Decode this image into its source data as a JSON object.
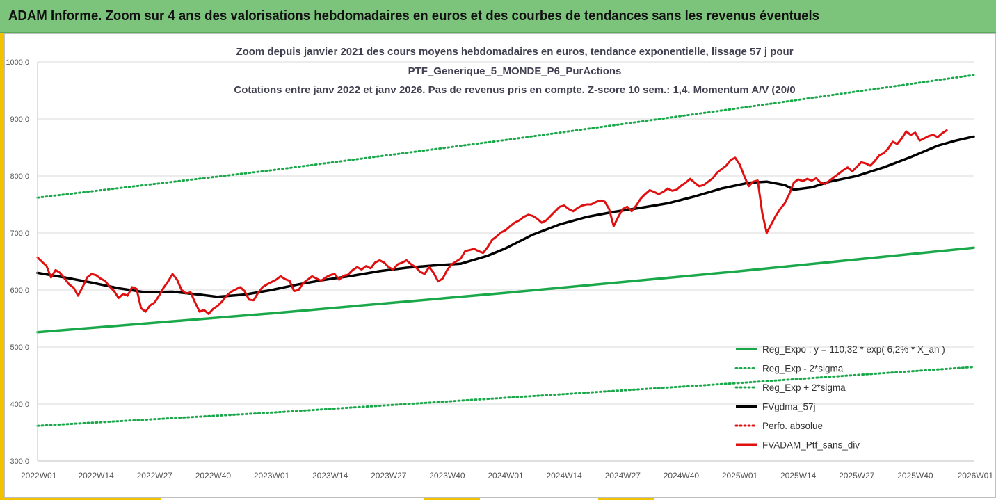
{
  "banner": {
    "title": "ADAM Informe. Zoom sur 4 ans des valorisations hebdomadaires en euros et des courbes de tendances sans les revenus éventuels"
  },
  "colors": {
    "banner_bg": "#7cc47b",
    "accent_yellow": "#f2c200",
    "regression": "#1aa84a",
    "dotted_bands": "#1aa84a",
    "moving_average": "#000000",
    "perf_absolue": "#e01010",
    "portfolio": "#e01010"
  },
  "chart_data": {
    "type": "line",
    "title_lines": [
      "Zoom depuis janvier 2021 des cours moyens hebdomadaires  en euros, tendance exponentielle, lissage 57 j pour",
      "PTF_Generique_5_MONDE_P6_PurActions",
      "Cotations entre janv 2022 et janv 2026. Pas de revenus pris en compte. Z-score 10 sem.: 1,4. Momentum A/V (20/0"
    ],
    "x_unit": "weeks since 2022W01",
    "x_range": [
      0,
      208
    ],
    "x_ticks": [
      {
        "x": 0,
        "label": "2022W01"
      },
      {
        "x": 13,
        "label": "2022W14"
      },
      {
        "x": 26,
        "label": "2022W27"
      },
      {
        "x": 39,
        "label": "2022W40"
      },
      {
        "x": 52,
        "label": "2023W01"
      },
      {
        "x": 65,
        "label": "2023W14"
      },
      {
        "x": 78,
        "label": "2023W27"
      },
      {
        "x": 91,
        "label": "2023W40"
      },
      {
        "x": 104,
        "label": "2024W01"
      },
      {
        "x": 117,
        "label": "2024W14"
      },
      {
        "x": 130,
        "label": "2024W27"
      },
      {
        "x": 143,
        "label": "2024W40"
      },
      {
        "x": 156,
        "label": "2025W01"
      },
      {
        "x": 169,
        "label": "2025W14"
      },
      {
        "x": 182,
        "label": "2025W27"
      },
      {
        "x": 195,
        "label": "2025W40"
      },
      {
        "x": 208,
        "label": "2026W01"
      }
    ],
    "y_range": [
      300,
      1000
    ],
    "y_ticks": [
      {
        "value": 300,
        "label": "300,0"
      },
      {
        "value": 400,
        "label": "400,0"
      },
      {
        "value": 500,
        "label": "500,0"
      },
      {
        "value": 600,
        "label": "600,0"
      },
      {
        "value": 700,
        "label": "700,0"
      },
      {
        "value": 800,
        "label": "800,0"
      },
      {
        "value": 900,
        "label": "900,0"
      },
      {
        "value": 1000,
        "label": "1000,0"
      }
    ],
    "legend_position": "bottom-right",
    "series": [
      {
        "name": "Reg_Expo : y = 110,32 * exp( 6,2% *  X_an )",
        "style": "solid-thick",
        "color": "#1aa84a",
        "points": [
          [
            0,
            526
          ],
          [
            52,
            559
          ],
          [
            104,
            595
          ],
          [
            156,
            633
          ],
          [
            208,
            674
          ]
        ]
      },
      {
        "name": "Reg_Exp - 2*sigma",
        "style": "dotted",
        "color": "#1aa84a",
        "points": [
          [
            0,
            362
          ],
          [
            52,
            385
          ],
          [
            104,
            411
          ],
          [
            156,
            437
          ],
          [
            208,
            465
          ]
        ]
      },
      {
        "name": "Reg_Exp + 2*sigma",
        "style": "dotted",
        "color": "#1aa84a",
        "points": [
          [
            0,
            762
          ],
          [
            52,
            810
          ],
          [
            104,
            863
          ],
          [
            156,
            919
          ],
          [
            208,
            977
          ]
        ]
      },
      {
        "name": "FVgdma_57j",
        "style": "solid-thick",
        "color": "#000000",
        "points": [
          [
            0,
            630
          ],
          [
            6,
            622
          ],
          [
            12,
            613
          ],
          [
            18,
            603
          ],
          [
            24,
            596
          ],
          [
            30,
            597
          ],
          [
            36,
            592
          ],
          [
            40,
            588
          ],
          [
            46,
            592
          ],
          [
            52,
            600
          ],
          [
            58,
            610
          ],
          [
            64,
            618
          ],
          [
            70,
            625
          ],
          [
            76,
            633
          ],
          [
            82,
            639
          ],
          [
            88,
            643
          ],
          [
            94,
            646
          ],
          [
            100,
            660
          ],
          [
            104,
            673
          ],
          [
            110,
            697
          ],
          [
            116,
            715
          ],
          [
            122,
            728
          ],
          [
            128,
            737
          ],
          [
            134,
            744
          ],
          [
            140,
            752
          ],
          [
            146,
            764
          ],
          [
            152,
            778
          ],
          [
            158,
            788
          ],
          [
            162,
            790
          ],
          [
            166,
            784
          ],
          [
            168,
            776
          ],
          [
            172,
            780
          ],
          [
            176,
            790
          ],
          [
            182,
            800
          ],
          [
            188,
            815
          ],
          [
            194,
            833
          ],
          [
            200,
            853
          ],
          [
            204,
            862
          ],
          [
            208,
            869
          ]
        ]
      },
      {
        "name": "Perfo. absolue",
        "style": "dotted",
        "color": "#e01010",
        "points": []
      },
      {
        "name": "FVADAM_Ptf_sans_div",
        "style": "solid-thick",
        "color": "#e01010",
        "points": [
          [
            0,
            657
          ],
          [
            2,
            642
          ],
          [
            3,
            622
          ],
          [
            4,
            635
          ],
          [
            5,
            630
          ],
          [
            6,
            620
          ],
          [
            7,
            610
          ],
          [
            8,
            604
          ],
          [
            9,
            590
          ],
          [
            10,
            605
          ],
          [
            11,
            622
          ],
          [
            12,
            628
          ],
          [
            13,
            626
          ],
          [
            14,
            620
          ],
          [
            15,
            616
          ],
          [
            16,
            606
          ],
          [
            17,
            598
          ],
          [
            18,
            586
          ],
          [
            19,
            593
          ],
          [
            20,
            590
          ],
          [
            21,
            605
          ],
          [
            22,
            602
          ],
          [
            23,
            568
          ],
          [
            24,
            562
          ],
          [
            25,
            573
          ],
          [
            26,
            578
          ],
          [
            27,
            590
          ],
          [
            28,
            604
          ],
          [
            29,
            615
          ],
          [
            30,
            628
          ],
          [
            31,
            618
          ],
          [
            32,
            600
          ],
          [
            33,
            594
          ],
          [
            34,
            596
          ],
          [
            35,
            578
          ],
          [
            36,
            562
          ],
          [
            37,
            565
          ],
          [
            38,
            558
          ],
          [
            39,
            567
          ],
          [
            40,
            572
          ],
          [
            41,
            580
          ],
          [
            42,
            590
          ],
          [
            43,
            597
          ],
          [
            44,
            601
          ],
          [
            45,
            605
          ],
          [
            46,
            598
          ],
          [
            47,
            583
          ],
          [
            48,
            582
          ],
          [
            49,
            595
          ],
          [
            50,
            605
          ],
          [
            51,
            610
          ],
          [
            52,
            614
          ],
          [
            53,
            618
          ],
          [
            54,
            624
          ],
          [
            55,
            619
          ],
          [
            56,
            616
          ],
          [
            57,
            598
          ],
          [
            58,
            600
          ],
          [
            59,
            612
          ],
          [
            60,
            618
          ],
          [
            61,
            624
          ],
          [
            62,
            620
          ],
          [
            63,
            616
          ],
          [
            64,
            622
          ],
          [
            65,
            626
          ],
          [
            66,
            628
          ],
          [
            67,
            618
          ],
          [
            68,
            625
          ],
          [
            69,
            627
          ],
          [
            70,
            635
          ],
          [
            71,
            640
          ],
          [
            72,
            636
          ],
          [
            73,
            642
          ],
          [
            74,
            638
          ],
          [
            75,
            648
          ],
          [
            76,
            652
          ],
          [
            77,
            648
          ],
          [
            78,
            640
          ],
          [
            79,
            636
          ],
          [
            80,
            645
          ],
          [
            81,
            648
          ],
          [
            82,
            652
          ],
          [
            83,
            645
          ],
          [
            84,
            640
          ],
          [
            85,
            632
          ],
          [
            86,
            628
          ],
          [
            87,
            640
          ],
          [
            88,
            630
          ],
          [
            89,
            615
          ],
          [
            90,
            620
          ],
          [
            91,
            635
          ],
          [
            92,
            645
          ],
          [
            93,
            650
          ],
          [
            94,
            655
          ],
          [
            95,
            668
          ],
          [
            96,
            670
          ],
          [
            97,
            672
          ],
          [
            98,
            668
          ],
          [
            99,
            665
          ],
          [
            100,
            675
          ],
          [
            101,
            688
          ],
          [
            102,
            694
          ],
          [
            103,
            701
          ],
          [
            104,
            705
          ],
          [
            105,
            712
          ],
          [
            106,
            718
          ],
          [
            107,
            722
          ],
          [
            108,
            728
          ],
          [
            109,
            732
          ],
          [
            110,
            730
          ],
          [
            111,
            725
          ],
          [
            112,
            718
          ],
          [
            113,
            722
          ],
          [
            114,
            730
          ],
          [
            115,
            738
          ],
          [
            116,
            746
          ],
          [
            117,
            748
          ],
          [
            118,
            742
          ],
          [
            119,
            738
          ],
          [
            120,
            744
          ],
          [
            121,
            748
          ],
          [
            122,
            750
          ],
          [
            123,
            750
          ],
          [
            124,
            754
          ],
          [
            125,
            757
          ],
          [
            126,
            755
          ],
          [
            127,
            742
          ],
          [
            128,
            712
          ],
          [
            129,
            728
          ],
          [
            130,
            742
          ],
          [
            131,
            746
          ],
          [
            132,
            738
          ],
          [
            133,
            748
          ],
          [
            134,
            760
          ],
          [
            135,
            768
          ],
          [
            136,
            775
          ],
          [
            137,
            772
          ],
          [
            138,
            768
          ],
          [
            139,
            772
          ],
          [
            140,
            778
          ],
          [
            141,
            774
          ],
          [
            142,
            776
          ],
          [
            143,
            783
          ],
          [
            144,
            788
          ],
          [
            145,
            795
          ],
          [
            146,
            788
          ],
          [
            147,
            782
          ],
          [
            148,
            784
          ],
          [
            149,
            790
          ],
          [
            150,
            796
          ],
          [
            151,
            806
          ],
          [
            152,
            812
          ],
          [
            153,
            818
          ],
          [
            154,
            828
          ],
          [
            155,
            832
          ],
          [
            156,
            820
          ],
          [
            157,
            800
          ],
          [
            158,
            782
          ],
          [
            159,
            790
          ],
          [
            160,
            792
          ],
          [
            161,
            735
          ],
          [
            162,
            700
          ],
          [
            163,
            715
          ],
          [
            164,
            730
          ],
          [
            165,
            742
          ],
          [
            166,
            752
          ],
          [
            167,
            768
          ],
          [
            168,
            788
          ],
          [
            169,
            794
          ],
          [
            170,
            791
          ],
          [
            171,
            795
          ],
          [
            172,
            792
          ],
          [
            173,
            796
          ],
          [
            174,
            788
          ],
          [
            175,
            786
          ],
          [
            176,
            792
          ],
          [
            177,
            798
          ],
          [
            178,
            804
          ],
          [
            179,
            810
          ],
          [
            180,
            815
          ],
          [
            181,
            808
          ],
          [
            182,
            816
          ],
          [
            183,
            824
          ],
          [
            184,
            822
          ],
          [
            185,
            818
          ],
          [
            186,
            826
          ],
          [
            187,
            836
          ],
          [
            188,
            840
          ],
          [
            189,
            848
          ],
          [
            190,
            860
          ],
          [
            191,
            856
          ],
          [
            192,
            866
          ],
          [
            193,
            878
          ],
          [
            194,
            872
          ],
          [
            195,
            876
          ],
          [
            196,
            862
          ],
          [
            197,
            866
          ],
          [
            198,
            870
          ],
          [
            199,
            872
          ],
          [
            200,
            868
          ],
          [
            201,
            875
          ],
          [
            202,
            880
          ]
        ]
      }
    ]
  }
}
